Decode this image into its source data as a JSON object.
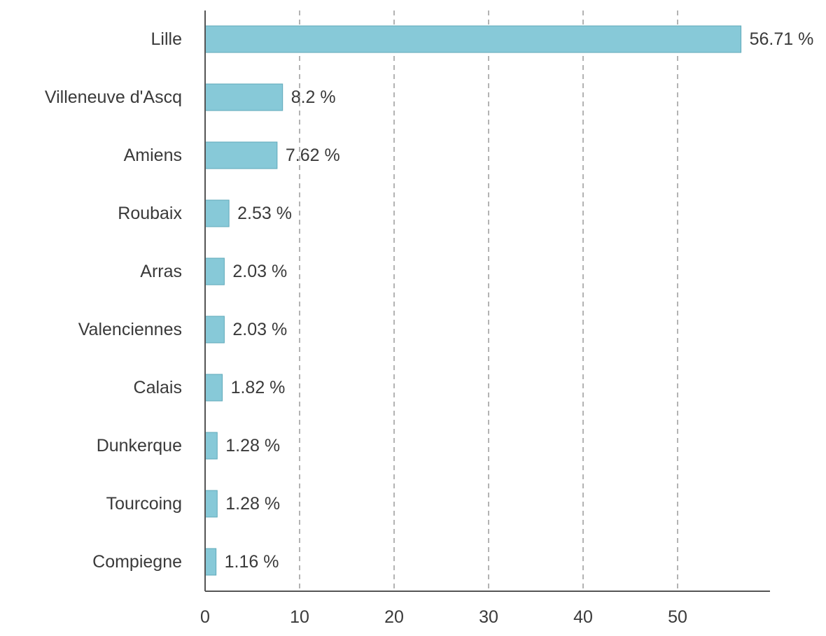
{
  "chart_data": {
    "type": "bar",
    "orientation": "horizontal",
    "categories": [
      "Lille",
      "Villeneuve d'Ascq",
      "Amiens",
      "Roubaix",
      "Arras",
      "Valenciennes",
      "Calais",
      "Dunkerque",
      "Tourcoing",
      "Compiegne"
    ],
    "values": [
      56.71,
      8.2,
      7.62,
      2.53,
      2.03,
      2.03,
      1.82,
      1.28,
      1.28,
      1.16
    ],
    "value_labels": [
      "56.71 %",
      "8.2 %",
      "7.62 %",
      "2.53 %",
      "2.03 %",
      "2.03 %",
      "1.82 %",
      "1.28 %",
      "1.28 %",
      "1.16 %"
    ],
    "x_ticks": [
      0,
      10,
      20,
      30,
      40,
      50
    ],
    "x_tick_labels": [
      "0",
      "10",
      "20",
      "30",
      "40",
      "50"
    ],
    "xlim": [
      0,
      60
    ],
    "grid": "vertical dashed",
    "bar_color": "#87c9d8",
    "title": "",
    "xlabel": "",
    "ylabel": ""
  }
}
